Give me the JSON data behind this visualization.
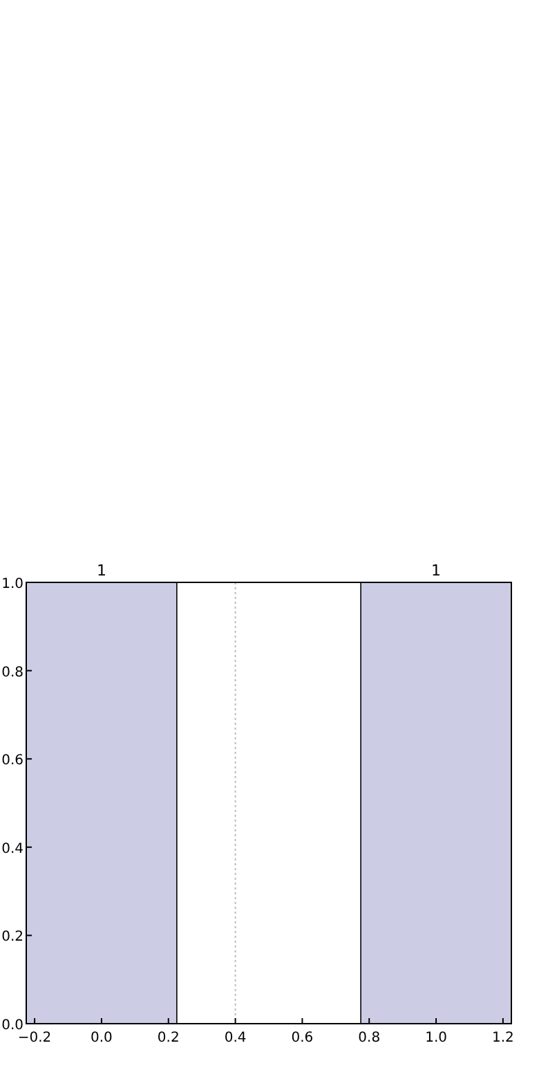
{
  "chart_data": {
    "type": "bar",
    "x": [
      0,
      1
    ],
    "values": [
      1,
      1
    ],
    "color": "#cccce5",
    "data_labels": true,
    "xlim": [
      -0.225,
      1.225
    ],
    "xticks": [
      {
        "value": -0.2,
        "label": "−0.2"
      },
      {
        "value": 0,
        "label": "0.0"
      },
      0.2,
      0.4,
      0.6,
      0.8,
      {
        "value": 1,
        "label": "1.0"
      },
      1.2
    ],
    "ylim": [
      0,
      1
    ],
    "yticks": [
      {
        "value": 0,
        "label": "0.0"
      },
      0.2,
      0.4,
      0.6,
      0.8,
      {
        "value": 1,
        "label": "1.0"
      }
    ],
    "ref_lines": [
      {
        "axis": "x",
        "value": 0.4,
        "color": "#bbbbbb",
        "line_style": "dotted"
      }
    ],
    "grid": false
  }
}
